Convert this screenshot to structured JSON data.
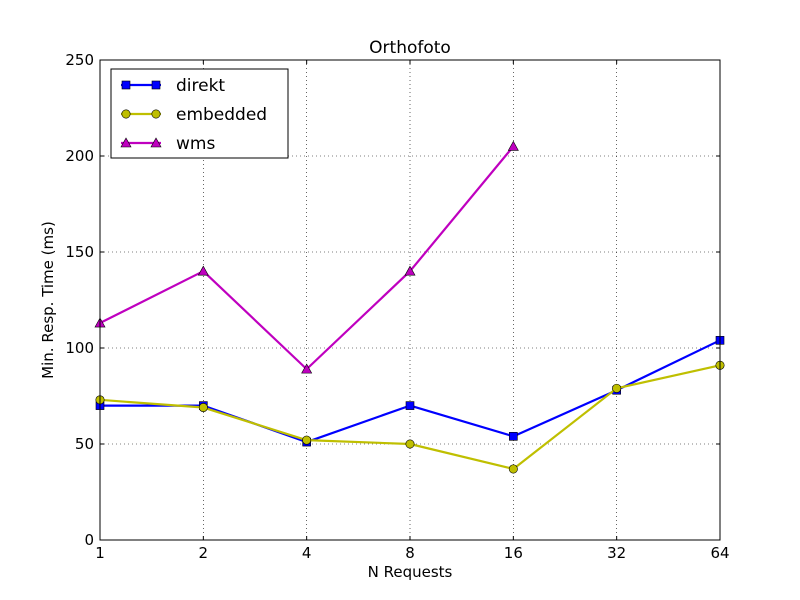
{
  "chart_data": {
    "type": "line",
    "title": "Orthofoto",
    "xlabel": "N Requests",
    "ylabel": "Min. Resp. Time (ms)",
    "categories": [
      "1",
      "2",
      "4",
      "8",
      "16",
      "32",
      "64"
    ],
    "ylim": [
      0,
      250
    ],
    "yticks": [
      0,
      50,
      100,
      150,
      200,
      250
    ],
    "grid": true,
    "legend_position": "top-left",
    "series": [
      {
        "name": "direkt",
        "color": "#0000ff",
        "marker": "square",
        "values": [
          70,
          70,
          51,
          70,
          54,
          78,
          104
        ]
      },
      {
        "name": "embedded",
        "color": "#bfbf00",
        "marker": "circle",
        "values": [
          73,
          69,
          52,
          50,
          37,
          79,
          91
        ]
      },
      {
        "name": "wms",
        "color": "#bf00bf",
        "marker": "triangle",
        "values": [
          113,
          140,
          89,
          140,
          205,
          null,
          null
        ]
      }
    ]
  }
}
